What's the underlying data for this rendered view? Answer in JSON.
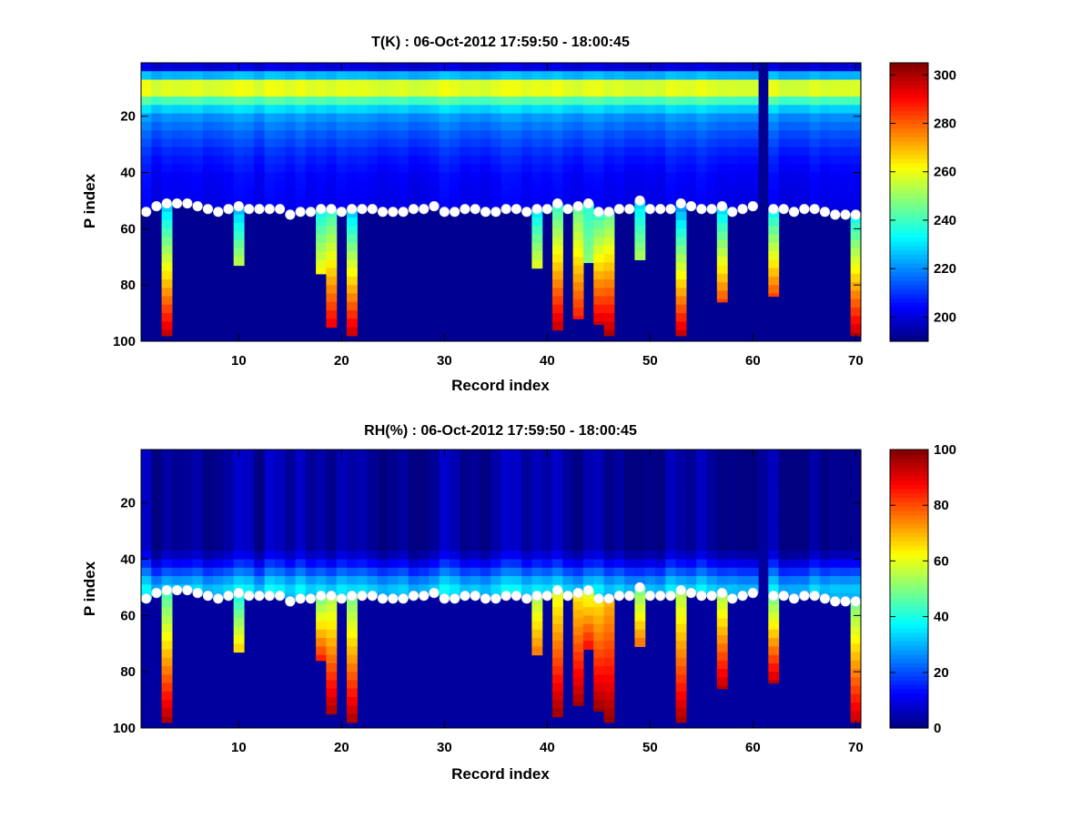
{
  "chart_data": [
    {
      "type": "heatmap",
      "title": "T(K) : 06-Oct-2012 17:59:50 - 18:00:45",
      "xlabel": "Record index",
      "ylabel": "P index",
      "xlim": [
        1,
        71
      ],
      "ylim": [
        100,
        1
      ],
      "y_reversed": true,
      "xticks": [
        10,
        20,
        30,
        40,
        50,
        60,
        70
      ],
      "yticks": [
        20,
        40,
        60,
        80,
        100
      ],
      "colorbar": {
        "min": 190,
        "max": 305,
        "ticks": [
          200,
          220,
          240,
          260,
          280,
          300
        ],
        "colormap": "jet"
      },
      "fill_value": 192,
      "blank_record": 61,
      "profile_shape": [
        [
          1,
          200
        ],
        [
          3,
          215
        ],
        [
          5,
          235
        ],
        [
          7,
          258
        ],
        [
          9,
          262
        ],
        [
          11,
          255
        ],
        [
          14,
          235
        ],
        [
          18,
          222
        ],
        [
          24,
          215
        ],
        [
          32,
          208
        ],
        [
          40,
          204
        ],
        [
          46,
          203
        ],
        [
          52,
          202
        ]
      ],
      "columns": [
        {
          "x": 3,
          "bottom": 98,
          "top_value": 228,
          "bottom_value": 300
        },
        {
          "x": 10,
          "bottom": 73,
          "top_value": 226,
          "bottom_value": 258
        },
        {
          "x": 18,
          "bottom": 76,
          "top_value": 235,
          "bottom_value": 265
        },
        {
          "x": 19,
          "bottom": 95,
          "top_value": 240,
          "bottom_value": 295
        },
        {
          "x": 21,
          "bottom": 98,
          "top_value": 228,
          "bottom_value": 300
        },
        {
          "x": 39,
          "bottom": 74,
          "top_value": 232,
          "bottom_value": 262
        },
        {
          "x": 41,
          "bottom": 96,
          "top_value": 240,
          "bottom_value": 300
        },
        {
          "x": 43,
          "bottom": 92,
          "top_value": 245,
          "bottom_value": 290
        },
        {
          "x": 44,
          "bottom": 72,
          "top_value": 238,
          "bottom_value": 250
        },
        {
          "x": 45,
          "bottom": 94,
          "top_value": 240,
          "bottom_value": 298
        },
        {
          "x": 46,
          "bottom": 98,
          "top_value": 245,
          "bottom_value": 302
        },
        {
          "x": 49,
          "bottom": 71,
          "top_value": 230,
          "bottom_value": 255
        },
        {
          "x": 53,
          "bottom": 98,
          "top_value": 222,
          "bottom_value": 300
        },
        {
          "x": 57,
          "bottom": 86,
          "top_value": 230,
          "bottom_value": 285
        },
        {
          "x": 62,
          "bottom": 84,
          "top_value": 235,
          "bottom_value": 285
        },
        {
          "x": 70,
          "bottom": 98,
          "top_value": 235,
          "bottom_value": 300
        }
      ],
      "markers_note": "white circles mark the level per record",
      "markers": [
        [
          1,
          54
        ],
        [
          2,
          52
        ],
        [
          3,
          51
        ],
        [
          4,
          51
        ],
        [
          5,
          51
        ],
        [
          6,
          52
        ],
        [
          7,
          53
        ],
        [
          8,
          54
        ],
        [
          9,
          53
        ],
        [
          10,
          52
        ],
        [
          11,
          53
        ],
        [
          12,
          53
        ],
        [
          13,
          53
        ],
        [
          14,
          53
        ],
        [
          15,
          55
        ],
        [
          16,
          54
        ],
        [
          17,
          54
        ],
        [
          18,
          53
        ],
        [
          19,
          53
        ],
        [
          20,
          54
        ],
        [
          21,
          53
        ],
        [
          22,
          53
        ],
        [
          23,
          53
        ],
        [
          24,
          54
        ],
        [
          25,
          54
        ],
        [
          26,
          54
        ],
        [
          27,
          53
        ],
        [
          28,
          53
        ],
        [
          29,
          52
        ],
        [
          30,
          54
        ],
        [
          31,
          54
        ],
        [
          32,
          53
        ],
        [
          33,
          53
        ],
        [
          34,
          54
        ],
        [
          35,
          54
        ],
        [
          36,
          53
        ],
        [
          37,
          53
        ],
        [
          38,
          54
        ],
        [
          39,
          53
        ],
        [
          40,
          53
        ],
        [
          41,
          51
        ],
        [
          42,
          53
        ],
        [
          43,
          52
        ],
        [
          44,
          51
        ],
        [
          45,
          54
        ],
        [
          46,
          54
        ],
        [
          47,
          53
        ],
        [
          48,
          53
        ],
        [
          49,
          50
        ],
        [
          50,
          53
        ],
        [
          51,
          53
        ],
        [
          52,
          53
        ],
        [
          53,
          51
        ],
        [
          54,
          52
        ],
        [
          55,
          53
        ],
        [
          56,
          53
        ],
        [
          57,
          52
        ],
        [
          58,
          54
        ],
        [
          59,
          53
        ],
        [
          60,
          52
        ],
        [
          62,
          53
        ],
        [
          63,
          53
        ],
        [
          64,
          54
        ],
        [
          65,
          53
        ],
        [
          66,
          53
        ],
        [
          67,
          54
        ],
        [
          68,
          55
        ],
        [
          69,
          55
        ],
        [
          70,
          55
        ]
      ]
    },
    {
      "type": "heatmap",
      "title": "RH(%) : 06-Oct-2012 17:59:50 - 18:00:45",
      "xlabel": "Record index",
      "ylabel": "P index",
      "xlim": [
        1,
        71
      ],
      "ylim": [
        100,
        1
      ],
      "y_reversed": true,
      "xticks": [
        10,
        20,
        30,
        40,
        50,
        60,
        70
      ],
      "yticks": [
        20,
        40,
        60,
        80,
        100
      ],
      "colorbar": {
        "min": 0,
        "max": 100,
        "ticks": [
          0,
          20,
          40,
          60,
          80,
          100
        ],
        "colormap": "jet"
      },
      "fill_value": 3,
      "blank_record": 61,
      "profile_shape": [
        [
          1,
          3
        ],
        [
          34,
          3
        ],
        [
          38,
          8
        ],
        [
          42,
          18
        ],
        [
          46,
          28
        ],
        [
          50,
          35
        ],
        [
          54,
          28
        ],
        [
          58,
          15
        ],
        [
          60,
          6
        ]
      ],
      "columns": [
        {
          "x": 3,
          "bottom": 98,
          "top_value": 45,
          "bottom_value": 98
        },
        {
          "x": 10,
          "bottom": 73,
          "top_value": 40,
          "bottom_value": 70
        },
        {
          "x": 18,
          "bottom": 76,
          "top_value": 50,
          "bottom_value": 88
        },
        {
          "x": 19,
          "bottom": 95,
          "top_value": 55,
          "bottom_value": 98
        },
        {
          "x": 21,
          "bottom": 98,
          "top_value": 50,
          "bottom_value": 98
        },
        {
          "x": 39,
          "bottom": 74,
          "top_value": 55,
          "bottom_value": 78
        },
        {
          "x": 41,
          "bottom": 96,
          "top_value": 60,
          "bottom_value": 99
        },
        {
          "x": 43,
          "bottom": 92,
          "top_value": 65,
          "bottom_value": 98
        },
        {
          "x": 44,
          "bottom": 72,
          "top_value": 60,
          "bottom_value": 90
        },
        {
          "x": 45,
          "bottom": 94,
          "top_value": 65,
          "bottom_value": 99
        },
        {
          "x": 46,
          "bottom": 98,
          "top_value": 70,
          "bottom_value": 99
        },
        {
          "x": 49,
          "bottom": 71,
          "top_value": 50,
          "bottom_value": 80
        },
        {
          "x": 53,
          "bottom": 98,
          "top_value": 55,
          "bottom_value": 98
        },
        {
          "x": 57,
          "bottom": 86,
          "top_value": 55,
          "bottom_value": 96
        },
        {
          "x": 62,
          "bottom": 84,
          "top_value": 50,
          "bottom_value": 96
        },
        {
          "x": 70,
          "bottom": 98,
          "top_value": 50,
          "bottom_value": 95
        }
      ],
      "markers_note": "white circles mark the level per record",
      "markers": [
        [
          1,
          54
        ],
        [
          2,
          52
        ],
        [
          3,
          51
        ],
        [
          4,
          51
        ],
        [
          5,
          51
        ],
        [
          6,
          52
        ],
        [
          7,
          53
        ],
        [
          8,
          54
        ],
        [
          9,
          53
        ],
        [
          10,
          52
        ],
        [
          11,
          53
        ],
        [
          12,
          53
        ],
        [
          13,
          53
        ],
        [
          14,
          53
        ],
        [
          15,
          55
        ],
        [
          16,
          54
        ],
        [
          17,
          54
        ],
        [
          18,
          53
        ],
        [
          19,
          53
        ],
        [
          20,
          54
        ],
        [
          21,
          53
        ],
        [
          22,
          53
        ],
        [
          23,
          53
        ],
        [
          24,
          54
        ],
        [
          25,
          54
        ],
        [
          26,
          54
        ],
        [
          27,
          53
        ],
        [
          28,
          53
        ],
        [
          29,
          52
        ],
        [
          30,
          54
        ],
        [
          31,
          54
        ],
        [
          32,
          53
        ],
        [
          33,
          53
        ],
        [
          34,
          54
        ],
        [
          35,
          54
        ],
        [
          36,
          53
        ],
        [
          37,
          53
        ],
        [
          38,
          54
        ],
        [
          39,
          53
        ],
        [
          40,
          53
        ],
        [
          41,
          51
        ],
        [
          42,
          53
        ],
        [
          43,
          52
        ],
        [
          44,
          51
        ],
        [
          45,
          54
        ],
        [
          46,
          54
        ],
        [
          47,
          53
        ],
        [
          48,
          53
        ],
        [
          49,
          50
        ],
        [
          50,
          53
        ],
        [
          51,
          53
        ],
        [
          52,
          53
        ],
        [
          53,
          51
        ],
        [
          54,
          52
        ],
        [
          55,
          53
        ],
        [
          56,
          53
        ],
        [
          57,
          52
        ],
        [
          58,
          54
        ],
        [
          59,
          53
        ],
        [
          60,
          52
        ],
        [
          62,
          53
        ],
        [
          63,
          53
        ],
        [
          64,
          54
        ],
        [
          65,
          53
        ],
        [
          66,
          53
        ],
        [
          67,
          54
        ],
        [
          68,
          55
        ],
        [
          69,
          55
        ],
        [
          70,
          55
        ]
      ]
    }
  ]
}
